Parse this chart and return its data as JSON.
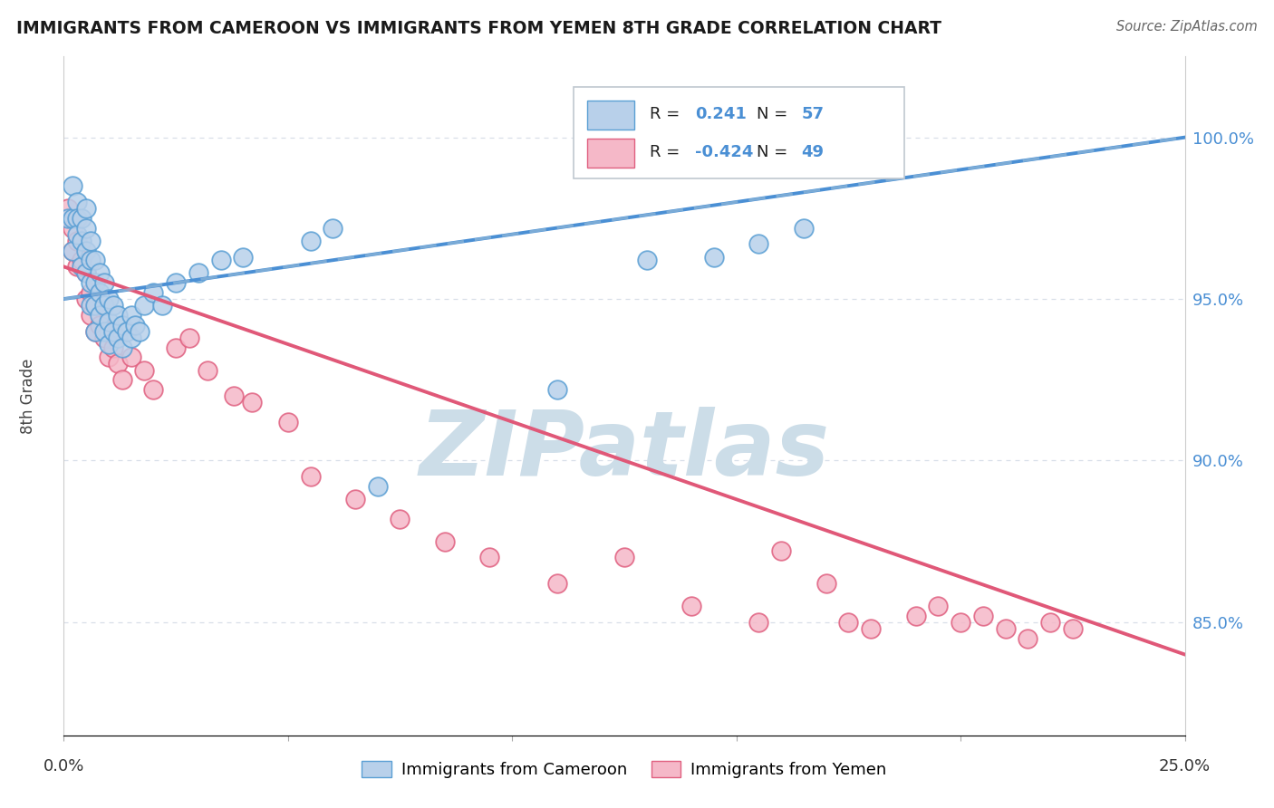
{
  "title": "IMMIGRANTS FROM CAMEROON VS IMMIGRANTS FROM YEMEN 8TH GRADE CORRELATION CHART",
  "source": "Source: ZipAtlas.com",
  "ylabel": "8th Grade",
  "ytick_values": [
    0.85,
    0.9,
    0.95,
    1.0
  ],
  "xlim": [
    0.0,
    0.25
  ],
  "ylim": [
    0.815,
    1.025
  ],
  "r_cameroon": 0.241,
  "n_cameroon": 57,
  "r_yemen": -0.424,
  "n_yemen": 49,
  "blue_fill": "#b8d0ea",
  "blue_edge": "#5a9fd4",
  "pink_fill": "#f5b8c8",
  "pink_edge": "#e06080",
  "blue_line": "#4a8fd4",
  "pink_line": "#e05878",
  "blue_dash": "#90b8d8",
  "grid_color": "#d8dfe8",
  "title_color": "#1a1a1a",
  "source_color": "#666666",
  "tick_color": "#4a8fd4",
  "watermark_color": "#ccdde8",
  "cameroon_x": [
    0.001,
    0.002,
    0.002,
    0.002,
    0.003,
    0.003,
    0.003,
    0.004,
    0.004,
    0.004,
    0.005,
    0.005,
    0.005,
    0.005,
    0.006,
    0.006,
    0.006,
    0.006,
    0.007,
    0.007,
    0.007,
    0.007,
    0.008,
    0.008,
    0.008,
    0.009,
    0.009,
    0.009,
    0.01,
    0.01,
    0.01,
    0.011,
    0.011,
    0.012,
    0.012,
    0.013,
    0.013,
    0.014,
    0.015,
    0.015,
    0.016,
    0.017,
    0.018,
    0.02,
    0.022,
    0.025,
    0.03,
    0.035,
    0.04,
    0.055,
    0.06,
    0.07,
    0.11,
    0.13,
    0.145,
    0.155,
    0.165
  ],
  "cameroon_y": [
    0.975,
    0.985,
    0.975,
    0.965,
    0.98,
    0.975,
    0.97,
    0.975,
    0.968,
    0.96,
    0.978,
    0.972,
    0.965,
    0.958,
    0.968,
    0.962,
    0.955,
    0.948,
    0.962,
    0.955,
    0.948,
    0.94,
    0.958,
    0.952,
    0.945,
    0.955,
    0.948,
    0.94,
    0.95,
    0.943,
    0.936,
    0.948,
    0.94,
    0.945,
    0.938,
    0.942,
    0.935,
    0.94,
    0.945,
    0.938,
    0.942,
    0.94,
    0.948,
    0.952,
    0.948,
    0.955,
    0.958,
    0.962,
    0.963,
    0.968,
    0.972,
    0.892,
    0.922,
    0.962,
    0.963,
    0.967,
    0.972
  ],
  "yemen_x": [
    0.001,
    0.002,
    0.002,
    0.003,
    0.003,
    0.004,
    0.005,
    0.005,
    0.006,
    0.006,
    0.007,
    0.007,
    0.008,
    0.009,
    0.01,
    0.01,
    0.011,
    0.012,
    0.013,
    0.015,
    0.018,
    0.02,
    0.025,
    0.028,
    0.032,
    0.038,
    0.042,
    0.05,
    0.055,
    0.065,
    0.075,
    0.085,
    0.095,
    0.11,
    0.125,
    0.14,
    0.155,
    0.16,
    0.17,
    0.175,
    0.18,
    0.19,
    0.195,
    0.2,
    0.205,
    0.21,
    0.215,
    0.22,
    0.225
  ],
  "yemen_y": [
    0.978,
    0.972,
    0.965,
    0.968,
    0.96,
    0.962,
    0.958,
    0.95,
    0.952,
    0.945,
    0.948,
    0.94,
    0.942,
    0.938,
    0.94,
    0.932,
    0.935,
    0.93,
    0.925,
    0.932,
    0.928,
    0.922,
    0.935,
    0.938,
    0.928,
    0.92,
    0.918,
    0.912,
    0.895,
    0.888,
    0.882,
    0.875,
    0.87,
    0.862,
    0.87,
    0.855,
    0.85,
    0.872,
    0.862,
    0.85,
    0.848,
    0.852,
    0.855,
    0.85,
    0.852,
    0.848,
    0.845,
    0.85,
    0.848
  ]
}
